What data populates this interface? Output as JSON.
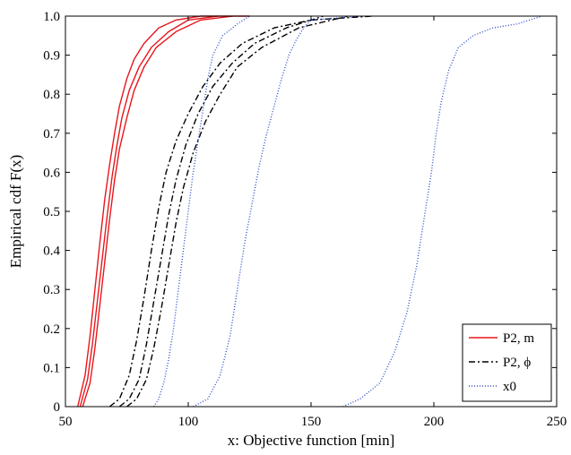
{
  "chart_data": {
    "type": "line",
    "title": "",
    "xlabel": "x: Objective function [min]",
    "ylabel": "Empirical cdf F(x)",
    "xlim": [
      50,
      250
    ],
    "ylim": [
      0,
      1.0
    ],
    "x_ticks": [
      50,
      100,
      150,
      200,
      250
    ],
    "y_ticks": [
      0,
      0.1,
      0.2,
      0.3,
      0.4,
      0.5,
      0.6,
      0.7,
      0.8,
      0.9,
      1.0
    ],
    "y_tick_labels": [
      "0",
      "0.1",
      "0.2",
      "0.3",
      "0.4",
      "0.5",
      "0.6",
      "0.7",
      "0.8",
      "0.9",
      "1.0"
    ],
    "grid": false,
    "legend_position": "bottom-right",
    "legend": [
      {
        "label": "P2, m",
        "style": "solid",
        "color": "#e8161c"
      },
      {
        "label": "P2, ϕ",
        "style": "dashdot",
        "color": "#000000"
      },
      {
        "label": "x0",
        "style": "dotted",
        "color": "#3050c8"
      }
    ],
    "series": [
      {
        "group": "P2, m",
        "color": "#e8161c",
        "dash": "solid",
        "x": [
          55,
          58,
          60,
          62,
          64,
          66,
          68,
          70,
          72,
          75,
          78,
          82,
          88,
          95,
          105,
          125
        ],
        "y": [
          0,
          0.08,
          0.18,
          0.3,
          0.42,
          0.53,
          0.62,
          0.7,
          0.77,
          0.84,
          0.89,
          0.93,
          0.97,
          0.99,
          1.0,
          1.0
        ]
      },
      {
        "group": "P2, m",
        "color": "#e8161c",
        "dash": "solid",
        "x": [
          56,
          59,
          61,
          63,
          65,
          67,
          69,
          71,
          73,
          76,
          80,
          85,
          92,
          100,
          112
        ],
        "y": [
          0,
          0.07,
          0.16,
          0.27,
          0.38,
          0.49,
          0.59,
          0.67,
          0.74,
          0.81,
          0.87,
          0.92,
          0.96,
          0.99,
          1.0
        ]
      },
      {
        "group": "P2, m",
        "color": "#e8161c",
        "dash": "solid",
        "x": [
          57,
          60,
          62,
          64,
          66,
          68,
          70,
          72,
          75,
          78,
          82,
          87,
          95,
          105,
          118
        ],
        "y": [
          0,
          0.06,
          0.15,
          0.26,
          0.37,
          0.48,
          0.58,
          0.66,
          0.74,
          0.81,
          0.87,
          0.92,
          0.96,
          0.99,
          1.0
        ]
      },
      {
        "group": "P2, ϕ",
        "color": "#000000",
        "dash": "dashdot",
        "x": [
          68,
          72,
          76,
          79,
          82,
          85,
          88,
          91,
          95,
          100,
          106,
          113,
          122,
          135,
          150,
          175
        ],
        "y": [
          0,
          0.02,
          0.08,
          0.17,
          0.28,
          0.4,
          0.51,
          0.6,
          0.68,
          0.75,
          0.82,
          0.88,
          0.93,
          0.97,
          0.99,
          1.0
        ]
      },
      {
        "group": "P2, ϕ",
        "color": "#000000",
        "dash": "dashdot",
        "x": [
          72,
          76,
          80,
          83,
          86,
          89,
          92,
          95,
          99,
          104,
          110,
          118,
          127,
          140,
          155
        ],
        "y": [
          0,
          0.02,
          0.07,
          0.16,
          0.27,
          0.38,
          0.49,
          0.58,
          0.67,
          0.75,
          0.82,
          0.88,
          0.93,
          0.97,
          1.0
        ]
      },
      {
        "group": "P2, ϕ",
        "color": "#000000",
        "dash": "dashdot",
        "x": [
          75,
          79,
          83,
          86,
          89,
          92,
          95,
          98,
          102,
          107,
          113,
          120,
          130,
          145,
          165
        ],
        "y": [
          0,
          0.02,
          0.07,
          0.15,
          0.25,
          0.36,
          0.47,
          0.56,
          0.65,
          0.73,
          0.8,
          0.87,
          0.92,
          0.97,
          1.0
        ]
      },
      {
        "group": "x0",
        "color": "#3050c8",
        "dash": "dotted",
        "x": [
          86,
          88,
          90,
          92,
          94,
          96,
          98,
          100,
          102,
          104,
          106,
          108,
          110,
          114,
          120,
          125
        ],
        "y": [
          0,
          0.02,
          0.06,
          0.12,
          0.2,
          0.3,
          0.4,
          0.5,
          0.6,
          0.68,
          0.76,
          0.84,
          0.9,
          0.95,
          0.98,
          1.0
        ]
      },
      {
        "group": "x0",
        "color": "#3050c8",
        "dash": "dotted",
        "x": [
          102,
          108,
          113,
          117,
          120,
          123,
          126,
          129,
          132,
          135,
          138,
          141,
          144,
          147,
          150,
          170
        ],
        "y": [
          0,
          0.02,
          0.08,
          0.18,
          0.3,
          0.42,
          0.52,
          0.62,
          0.7,
          0.77,
          0.84,
          0.9,
          0.94,
          0.97,
          0.99,
          1.0
        ]
      },
      {
        "group": "x0",
        "color": "#3050c8",
        "dash": "dotted",
        "x": [
          163,
          170,
          178,
          184,
          189,
          193,
          196,
          199,
          201,
          203,
          206,
          210,
          216,
          224,
          234,
          244
        ],
        "y": [
          0,
          0.02,
          0.06,
          0.14,
          0.24,
          0.36,
          0.48,
          0.6,
          0.7,
          0.78,
          0.86,
          0.92,
          0.95,
          0.97,
          0.98,
          1.0
        ]
      }
    ]
  }
}
